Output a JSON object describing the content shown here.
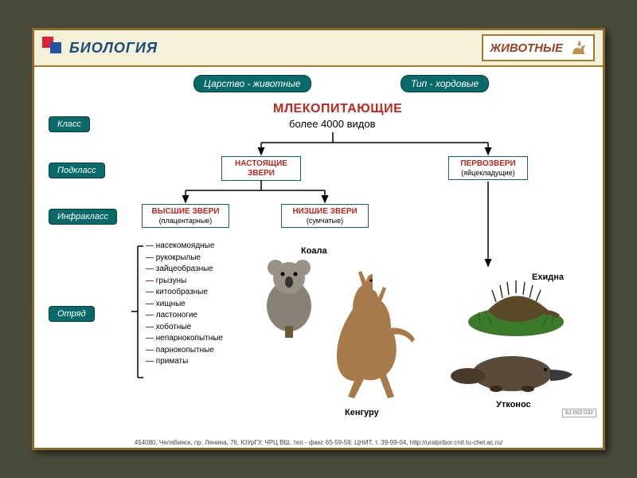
{
  "header": {
    "subject": "БИОЛОГИЯ",
    "category": "ЖИВОТНЫЕ"
  },
  "top_pills": {
    "kingdom": "Царство - животные",
    "phylum": "Тип - хордовые"
  },
  "side_labels": {
    "class": "Класс",
    "subclass": "Подкласс",
    "infraclass": "Инфракласс",
    "order": "Отряд"
  },
  "title": "МЛЕКОПИТАЮЩИЕ",
  "subtitle": "более  4000  видов",
  "nodes": {
    "true_beasts": {
      "t1": "НАСТОЯЩИЕ ЗВЕРИ",
      "t2": ""
    },
    "proto": {
      "t1": "ПЕРВОЗВЕРИ",
      "t2": "(яйцекладущие)"
    },
    "higher": {
      "t1": "ВЫСШИЕ ЗВЕРИ",
      "t2": "(плацентарные)"
    },
    "lower": {
      "t1": "НИЗШИЕ ЗВЕРИ",
      "t2": "(сумчатые)"
    }
  },
  "orders": [
    "насекомоядные",
    "рукокрылые",
    "зайцеобразные",
    "грызуны",
    "китообразные",
    "хищные",
    "ластоногие",
    "хоботные",
    "непарнокопытные",
    "парнокопытные",
    "приматы"
  ],
  "animals": {
    "koala": "Коала",
    "kangaroo": "Кенгуру",
    "echidna": "Ехидна",
    "platypus": "Утконос"
  },
  "footer": "454080, Челябинск, пр. Ленина, 76, ЮУрГУ, ЧРЦ ВШ, тел - факс 65-59-59, ЦНИТ, т. 39-99-04, http://uralpribor.cnit.tu-chel.ac.ru/",
  "corner_code": "82.002.032",
  "colors": {
    "teal": "#0a6a6a",
    "red": "#c3261f",
    "frame_border": "#8a6a2a",
    "header_bg": "#f5f0d8",
    "page_bg": "#4a4a3a"
  },
  "diagram": {
    "type": "tree",
    "connector_color": "#000000",
    "connector_width": 1.5,
    "arrow": "filled-triangle"
  }
}
